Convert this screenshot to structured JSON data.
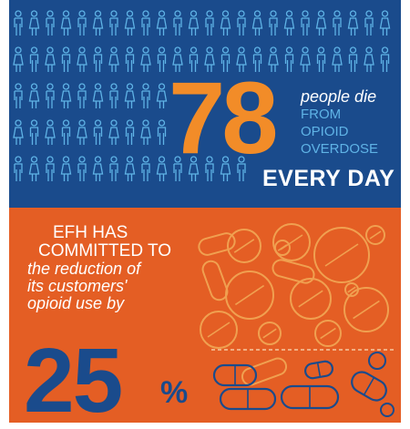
{
  "top_panel": {
    "big_number": "78",
    "line1": "people die",
    "line2": "FROM",
    "line3": "OPIOID",
    "line4": "OVERDOSE",
    "line5": "EVERY DAY"
  },
  "bottom_panel": {
    "line1": "EFH HAS",
    "line2": "COMMITTED TO",
    "line3": "the reduction of",
    "line4": "its customers'",
    "line5": "opioid use by",
    "big_number": "25",
    "percent_sign": "%"
  },
  "colors": {
    "navy": "#1a4b8c",
    "orange": "#e45e24",
    "accent_orange": "#f28c28",
    "light_blue": "#5fb3e6",
    "pill_outline": "#f0a050"
  },
  "icons": [
    "person-icon",
    "pill-icon"
  ]
}
